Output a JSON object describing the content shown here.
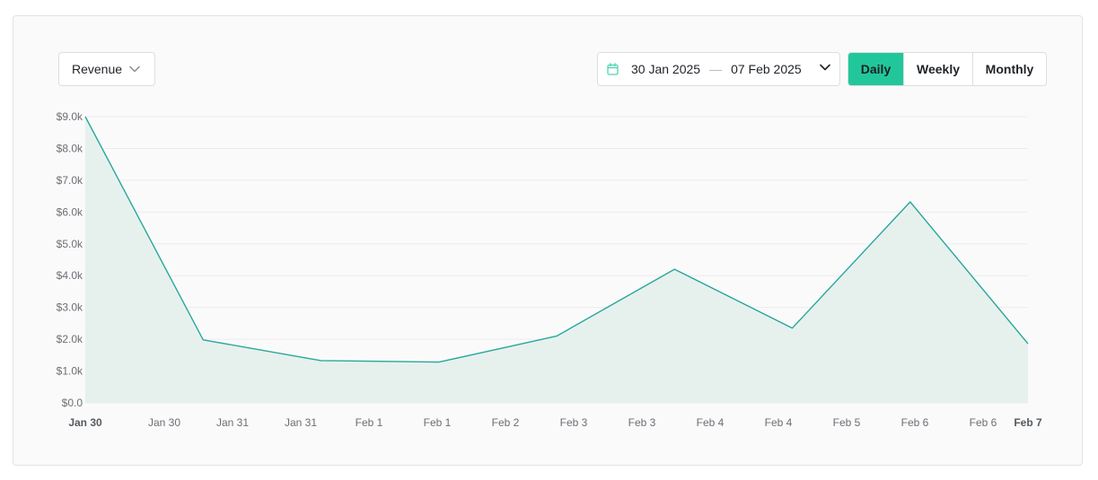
{
  "controls": {
    "metric_label": "Revenue",
    "date_start": "30 Jan 2025",
    "date_sep": "—",
    "date_end": "07 Feb 2025",
    "periods": [
      "Daily",
      "Weekly",
      "Monthly"
    ],
    "active_period": "Daily"
  },
  "colors": {
    "accent": "#21c79a",
    "line": "#2aa79b",
    "area": "#e6f1ee",
    "grid": "#ececec"
  },
  "chart_data": {
    "type": "area",
    "title": "",
    "xlabel": "",
    "ylabel": "",
    "ylim": [
      0,
      9000
    ],
    "y_ticks": [
      "$0.0",
      "$1.0k",
      "$2.0k",
      "$3.0k",
      "$4.0k",
      "$5.0k",
      "$6.0k",
      "$7.0k",
      "$8.0k",
      "$9.0k"
    ],
    "x_tick_labels": [
      "Jan 30",
      "Jan 30",
      "Jan 31",
      "Jan 31",
      "Feb 1",
      "Feb 1",
      "Feb 2",
      "Feb 3",
      "Feb 3",
      "Feb 4",
      "Feb 4",
      "Feb 5",
      "Feb 6",
      "Feb 6",
      "Feb 7"
    ],
    "x_tick_bold": [
      true,
      false,
      false,
      false,
      false,
      false,
      false,
      false,
      false,
      false,
      false,
      false,
      false,
      false,
      true
    ],
    "x": [
      "2025-01-30",
      "2025-01-31",
      "2025-02-01",
      "2025-02-02",
      "2025-02-03",
      "2025-02-04",
      "2025-02-05",
      "2025-02-06",
      "2025-02-07"
    ],
    "series": [
      {
        "values": [
          9000,
          1980,
          1330,
          1280,
          2100,
          4200,
          2350,
          6320,
          1860
        ]
      }
    ],
    "grid": true,
    "legend": "none"
  }
}
